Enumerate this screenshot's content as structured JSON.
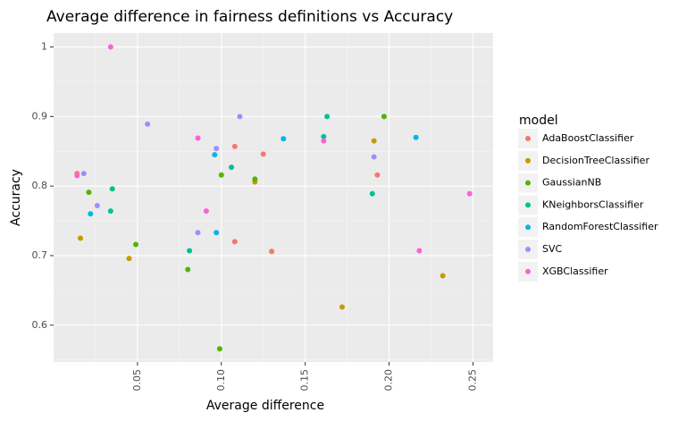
{
  "chart_data": {
    "type": "scatter",
    "title": "Average difference in fairness definitions vs Accuracy",
    "xlabel": "Average difference",
    "ylabel": "Accuracy",
    "xlim": [
      0.0,
      0.262
    ],
    "ylim": [
      0.547,
      1.02
    ],
    "x_ticks": [
      0.05,
      0.1,
      0.15,
      0.2,
      0.25
    ],
    "x_tick_labels": [
      "0.05",
      "0.10",
      "0.15",
      "0.20",
      "0.25"
    ],
    "y_ticks": [
      0.6,
      0.7,
      0.8,
      0.9,
      1.0
    ],
    "y_tick_labels": [
      "0.6",
      "0.7",
      "0.8",
      "0.9",
      "1"
    ],
    "grid": true,
    "legend": {
      "title": "model",
      "position": "right"
    },
    "series": [
      {
        "name": "AdaBoostClassifier",
        "color": "#F8766D",
        "points": [
          [
            0.014,
            0.818
          ],
          [
            0.108,
            0.857
          ],
          [
            0.125,
            0.846
          ],
          [
            0.193,
            0.816
          ],
          [
            0.108,
            0.72
          ],
          [
            0.13,
            0.706
          ]
        ]
      },
      {
        "name": "DecisionTreeClassifier",
        "color": "#C49A00",
        "points": [
          [
            0.016,
            0.725
          ],
          [
            0.045,
            0.696
          ],
          [
            0.12,
            0.806
          ],
          [
            0.191,
            0.865
          ],
          [
            0.172,
            0.626
          ],
          [
            0.232,
            0.671
          ]
        ]
      },
      {
        "name": "GaussianNB",
        "color": "#53B400",
        "points": [
          [
            0.021,
            0.791
          ],
          [
            0.049,
            0.716
          ],
          [
            0.1,
            0.816
          ],
          [
            0.12,
            0.81
          ],
          [
            0.197,
            0.9
          ],
          [
            0.08,
            0.68
          ],
          [
            0.099,
            0.566
          ]
        ]
      },
      {
        "name": "KNeighborsClassifier",
        "color": "#00C094",
        "points": [
          [
            0.035,
            0.796
          ],
          [
            0.034,
            0.764
          ],
          [
            0.081,
            0.707
          ],
          [
            0.106,
            0.827
          ],
          [
            0.161,
            0.871
          ],
          [
            0.163,
            0.9
          ],
          [
            0.19,
            0.789
          ]
        ]
      },
      {
        "name": "RandomForestClassifier",
        "color": "#00B6EB",
        "points": [
          [
            0.022,
            0.76
          ],
          [
            0.096,
            0.845
          ],
          [
            0.097,
            0.733
          ],
          [
            0.137,
            0.868
          ],
          [
            0.216,
            0.87
          ]
        ]
      },
      {
        "name": "SVC",
        "color": "#A58AFF",
        "points": [
          [
            0.018,
            0.818
          ],
          [
            0.026,
            0.772
          ],
          [
            0.056,
            0.889
          ],
          [
            0.097,
            0.854
          ],
          [
            0.111,
            0.9
          ],
          [
            0.191,
            0.842
          ],
          [
            0.086,
            0.733
          ]
        ]
      },
      {
        "name": "XGBClassifier",
        "color": "#FB61D7",
        "points": [
          [
            0.014,
            0.815
          ],
          [
            0.034,
            1.0
          ],
          [
            0.086,
            0.869
          ],
          [
            0.091,
            0.764
          ],
          [
            0.161,
            0.865
          ],
          [
            0.218,
            0.707
          ],
          [
            0.248,
            0.789
          ]
        ]
      }
    ]
  }
}
